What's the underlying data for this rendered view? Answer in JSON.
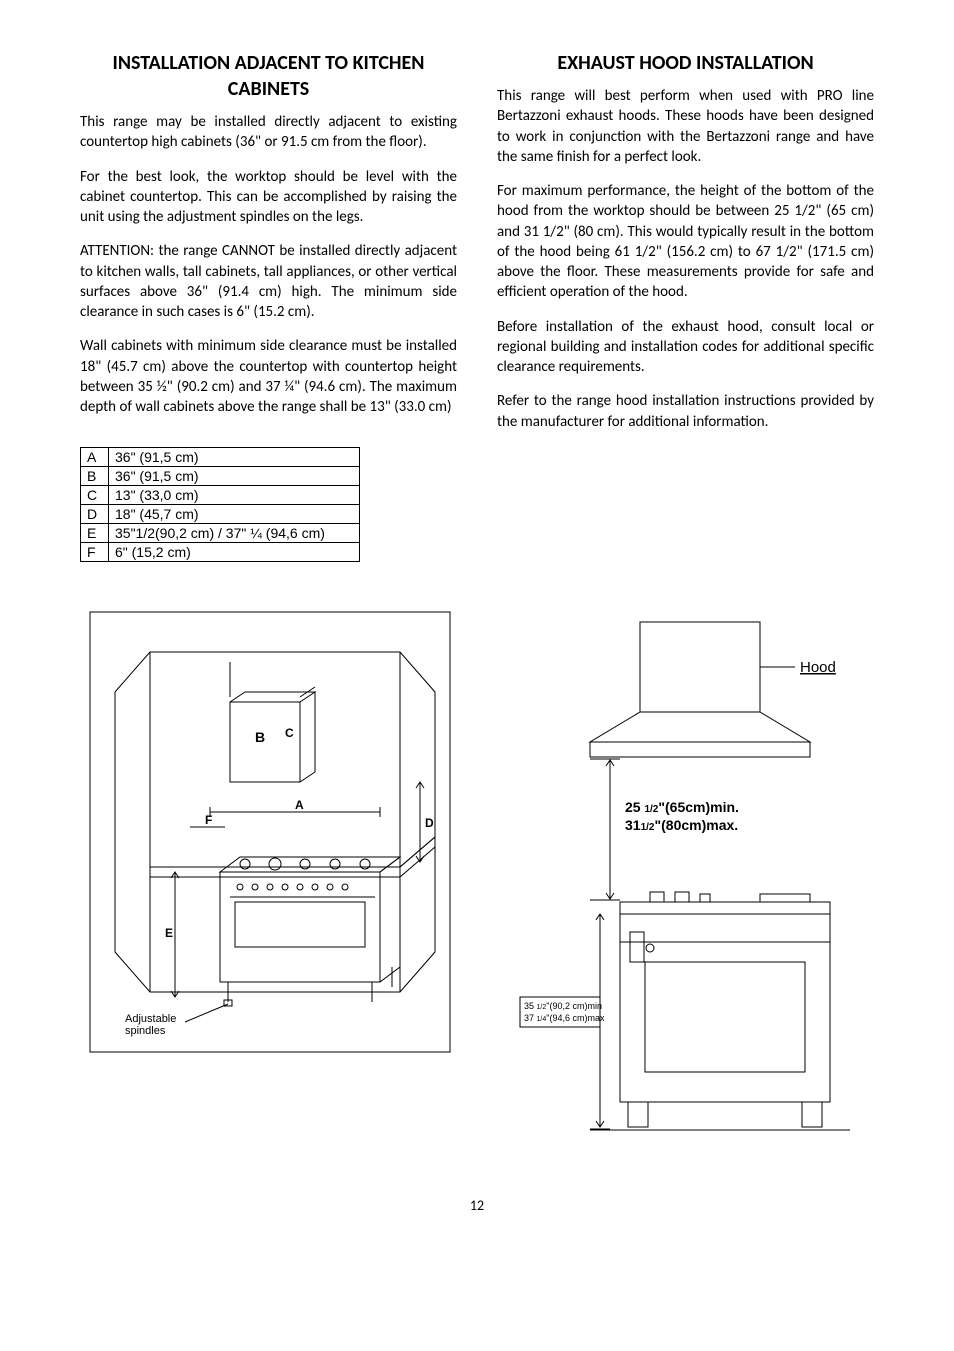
{
  "left": {
    "heading": "INSTALLATION ADJACENT TO KITCHEN CABINETS",
    "p1": "This range may be installed directly adjacent to existing countertop high cabinets (36\" or 91.5 cm from the floor).",
    "p2": "For the best look, the worktop should be level with the cabinet countertop. This can be accomplished by raising the unit using the adjustment spindles on the legs.",
    "p3": "ATTENTION: the range CANNOT be installed directly adjacent to kitchen walls, tall cabinets, tall appliances, or other vertical surfaces above 36\" (91.4 cm) high. The minimum side clearance in such cases is 6\" (15.2 cm).",
    "p4": "Wall cabinets with minimum side clearance must be installed 18\" (45.7 cm) above the countertop with countertop height between 35 ½\" (90.2 cm) and 37 ¼\" (94.6 cm). The maximum depth of wall cabinets above the range shall be 13\" (33.0 cm)"
  },
  "right": {
    "heading": "EXHAUST HOOD INSTALLATION",
    "p1": "This range will best perform when used with PRO line Bertazzoni exhaust hoods. These hoods have been designed to work in conjunction with the Bertazzoni range and have the same finish for a perfect look.",
    "p2": "For maximum performance, the height of the bottom of the hood from the worktop should be between 25 1/2\" (65 cm) and 31 1/2\" (80 cm). This would typically result in the bottom of the hood being 61 1/2\" (156.2 cm) to 67 1/2\" (171.5 cm) above the floor. These measurements provide for safe and efficient operation of the hood.",
    "p3": "Before installation of the exhaust hood, consult local or regional building and installation codes for additional specific clearance requirements.",
    "p4": "Refer to the range hood installation instructions provided by the manufacturer for additional information."
  },
  "table": {
    "rows": [
      [
        "A",
        "36\" (91,5 cm)"
      ],
      [
        "B",
        "36\" (91,5 cm)"
      ],
      [
        "C",
        "13\" (33,0 cm)"
      ],
      [
        "D",
        "18\" (45,7 cm)"
      ],
      [
        "E",
        "35\"1/2(90,2 cm) /  37\" ¼ (94,6 cm)"
      ],
      [
        "F",
        " 6\" (15,2 cm)"
      ]
    ]
  },
  "diag1": {
    "labels": {
      "A": "A",
      "B": "B",
      "C": "C",
      "D": "D",
      "E": "E",
      "F": "F"
    },
    "spindles": "Adjustable\nspindles"
  },
  "diag2": {
    "hood": "Hood",
    "clearance1": "25 1/2\"(65cm)min.",
    "clearance2": "311/2\"(80cm)max.",
    "h1": "35 1/2\"(90,2 cm)min",
    "h2": "37 1/4\"(94,6 cm)max"
  },
  "pageNum": "12"
}
